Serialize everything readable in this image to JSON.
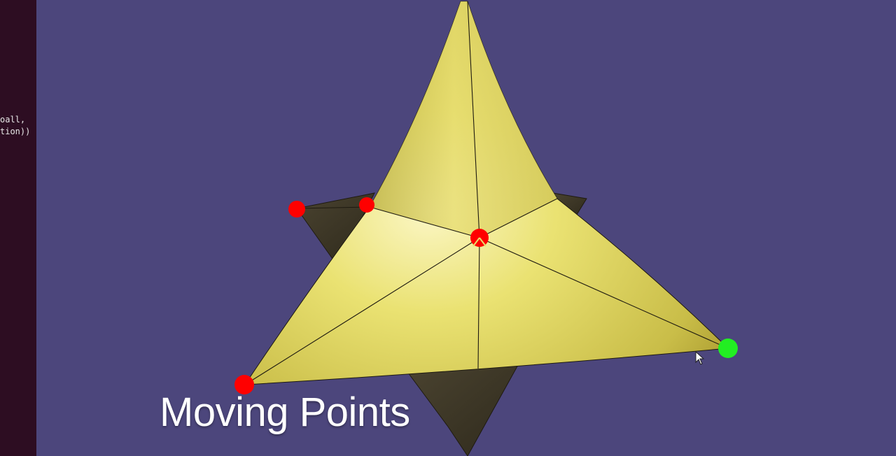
{
  "editor": {
    "code_lines": [
      "oall, ",
      "tion))"
    ]
  },
  "scene": {
    "background_color": "#4c467c",
    "surface_color": "#e8df6a",
    "shadow_surface_color": "#3a3424",
    "edge_color": "#1e1a10",
    "control_point_color": "#ff0000",
    "selected_point_color": "#22ee22"
  },
  "caption": {
    "text": "Moving Points"
  },
  "cursor_icon": "arrow-pointer-icon"
}
